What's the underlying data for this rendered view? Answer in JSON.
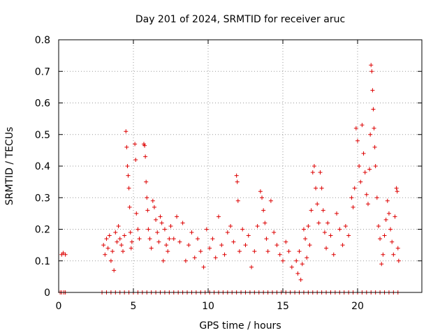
{
  "chart_data": {
    "type": "scatter",
    "title": "Day 201 of 2024, SRMTID for receiver aruc",
    "xlabel": "GPS time / hours",
    "ylabel": "SRMTID / TECUs",
    "xlim": [
      0,
      24.3
    ],
    "ylim": [
      0,
      0.8
    ],
    "grid": true,
    "marker": "+",
    "marker_color": "#dd0000",
    "x_ticks": [
      0,
      5,
      10,
      15,
      20
    ],
    "x_tick_labels": [
      "0",
      "5",
      "10",
      "15",
      "20"
    ],
    "y_ticks": [
      0,
      0.1,
      0.2,
      0.3,
      0.4,
      0.5,
      0.6,
      0.7,
      0.8
    ],
    "y_tick_labels": [
      "0",
      "0.1",
      "0.2",
      "0.3",
      "0.4",
      "0.5",
      "0.6",
      "0.7",
      "0.8"
    ],
    "series": [
      {
        "name": "SRMTID",
        "points": [
          [
            0.2,
            0.12
          ],
          [
            0.3,
            0.125
          ],
          [
            0.45,
            0.12
          ],
          [
            0.1,
            0
          ],
          [
            0.2,
            0
          ],
          [
            0.35,
            0
          ],
          [
            0.45,
            0
          ],
          [
            3.0,
            0.15
          ],
          [
            3.1,
            0.12
          ],
          [
            3.2,
            0.17
          ],
          [
            3.3,
            0.14
          ],
          [
            3.4,
            0.18
          ],
          [
            3.5,
            0.1
          ],
          [
            3.6,
            0.13
          ],
          [
            3.7,
            0.07
          ],
          [
            3.8,
            0.19
          ],
          [
            3.9,
            0.16
          ],
          [
            4.0,
            0.21
          ],
          [
            4.1,
            0.17
          ],
          [
            4.2,
            0.15
          ],
          [
            4.3,
            0.13
          ],
          [
            4.4,
            0.18
          ],
          [
            4.5,
            0.51
          ],
          [
            4.55,
            0.46
          ],
          [
            4.6,
            0.4
          ],
          [
            4.65,
            0.37
          ],
          [
            4.7,
            0.33
          ],
          [
            4.75,
            0.27
          ],
          [
            4.8,
            0.19
          ],
          [
            4.85,
            0.14
          ],
          [
            4.9,
            0.16
          ],
          [
            5.1,
            0.47
          ],
          [
            5.15,
            0.42
          ],
          [
            5.2,
            0.25
          ],
          [
            5.3,
            0.2
          ],
          [
            5.4,
            0.17
          ],
          [
            5.7,
            0.47
          ],
          [
            5.75,
            0.465
          ],
          [
            5.8,
            0.43
          ],
          [
            5.85,
            0.35
          ],
          [
            5.9,
            0.3
          ],
          [
            5.95,
            0.26
          ],
          [
            6.0,
            0.2
          ],
          [
            6.1,
            0.17
          ],
          [
            6.2,
            0.14
          ],
          [
            6.3,
            0.29
          ],
          [
            6.4,
            0.27
          ],
          [
            6.5,
            0.23
          ],
          [
            6.6,
            0.19
          ],
          [
            6.7,
            0.16
          ],
          [
            6.8,
            0.24
          ],
          [
            6.9,
            0.22
          ],
          [
            7.0,
            0.1
          ],
          [
            7.1,
            0.2
          ],
          [
            7.2,
            0.15
          ],
          [
            7.3,
            0.13
          ],
          [
            7.4,
            0.17
          ],
          [
            7.5,
            0.21
          ],
          [
            7.7,
            0.17
          ],
          [
            7.9,
            0.24
          ],
          [
            8.1,
            0.16
          ],
          [
            8.3,
            0.22
          ],
          [
            8.5,
            0.1
          ],
          [
            8.7,
            0.15
          ],
          [
            8.9,
            0.19
          ],
          [
            9.1,
            0.11
          ],
          [
            9.3,
            0.17
          ],
          [
            9.5,
            0.13
          ],
          [
            9.7,
            0.08
          ],
          [
            9.9,
            0.2
          ],
          [
            10.1,
            0.14
          ],
          [
            10.3,
            0.17
          ],
          [
            10.5,
            0.11
          ],
          [
            10.7,
            0.24
          ],
          [
            10.9,
            0.15
          ],
          [
            11.1,
            0.12
          ],
          [
            11.3,
            0.19
          ],
          [
            11.5,
            0.21
          ],
          [
            11.7,
            0.16
          ],
          [
            11.9,
            0.37
          ],
          [
            11.95,
            0.35
          ],
          [
            12.0,
            0.29
          ],
          [
            12.1,
            0.13
          ],
          [
            12.3,
            0.2
          ],
          [
            12.5,
            0.15
          ],
          [
            12.7,
            0.18
          ],
          [
            12.9,
            0.08
          ],
          [
            13.1,
            0.13
          ],
          [
            13.3,
            0.21
          ],
          [
            13.5,
            0.32
          ],
          [
            13.6,
            0.3
          ],
          [
            13.7,
            0.26
          ],
          [
            13.8,
            0.22
          ],
          [
            13.9,
            0.17
          ],
          [
            14.0,
            0.13
          ],
          [
            14.2,
            0.29
          ],
          [
            14.4,
            0.19
          ],
          [
            14.6,
            0.15
          ],
          [
            14.8,
            0.12
          ],
          [
            15.0,
            0.1
          ],
          [
            15.2,
            0.16
          ],
          [
            15.4,
            0.13
          ],
          [
            15.6,
            0.08
          ],
          [
            15.9,
            0.1
          ],
          [
            16.0,
            0.06
          ],
          [
            16.1,
            0.13
          ],
          [
            16.2,
            0.04
          ],
          [
            16.3,
            0.09
          ],
          [
            16.4,
            0.2
          ],
          [
            16.5,
            0.17
          ],
          [
            16.6,
            0.11
          ],
          [
            16.7,
            0.21
          ],
          [
            16.8,
            0.15
          ],
          [
            16.9,
            0.26
          ],
          [
            17.0,
            0.38
          ],
          [
            17.1,
            0.4
          ],
          [
            17.2,
            0.33
          ],
          [
            17.3,
            0.28
          ],
          [
            17.4,
            0.22
          ],
          [
            17.5,
            0.38
          ],
          [
            17.6,
            0.33
          ],
          [
            17.7,
            0.26
          ],
          [
            17.8,
            0.19
          ],
          [
            17.9,
            0.14
          ],
          [
            18.0,
            0.22
          ],
          [
            18.2,
            0.18
          ],
          [
            18.4,
            0.12
          ],
          [
            18.6,
            0.25
          ],
          [
            18.8,
            0.2
          ],
          [
            19.0,
            0.15
          ],
          [
            19.2,
            0.21
          ],
          [
            19.4,
            0.18
          ],
          [
            19.6,
            0.3
          ],
          [
            19.7,
            0.27
          ],
          [
            19.8,
            0.33
          ],
          [
            19.9,
            0.52
          ],
          [
            20.0,
            0.48
          ],
          [
            20.1,
            0.4
          ],
          [
            20.2,
            0.35
          ],
          [
            20.3,
            0.53
          ],
          [
            20.4,
            0.44
          ],
          [
            20.5,
            0.38
          ],
          [
            20.6,
            0.31
          ],
          [
            20.7,
            0.28
          ],
          [
            20.8,
            0.39
          ],
          [
            20.85,
            0.5
          ],
          [
            20.9,
            0.72
          ],
          [
            20.95,
            0.7
          ],
          [
            21.0,
            0.64
          ],
          [
            21.05,
            0.58
          ],
          [
            21.1,
            0.52
          ],
          [
            21.15,
            0.46
          ],
          [
            21.2,
            0.4
          ],
          [
            21.3,
            0.3
          ],
          [
            21.4,
            0.21
          ],
          [
            21.5,
            0.17
          ],
          [
            21.6,
            0.09
          ],
          [
            21.7,
            0.12
          ],
          [
            21.8,
            0.18
          ],
          [
            21.9,
            0.23
          ],
          [
            22.0,
            0.29
          ],
          [
            22.1,
            0.25
          ],
          [
            22.2,
            0.2
          ],
          [
            22.3,
            0.16
          ],
          [
            22.4,
            0.12
          ],
          [
            22.5,
            0.24
          ],
          [
            22.6,
            0.33
          ],
          [
            22.65,
            0.32
          ],
          [
            22.7,
            0.14
          ],
          [
            22.75,
            0.1
          ],
          [
            2.9,
            0
          ],
          [
            3.2,
            0
          ],
          [
            3.5,
            0
          ],
          [
            3.8,
            0
          ],
          [
            4.1,
            0
          ],
          [
            4.4,
            0
          ],
          [
            4.7,
            0
          ],
          [
            5.0,
            0
          ],
          [
            5.3,
            0
          ],
          [
            5.6,
            0
          ],
          [
            5.9,
            0
          ],
          [
            6.2,
            0
          ],
          [
            6.5,
            0
          ],
          [
            6.8,
            0
          ],
          [
            7.1,
            0
          ],
          [
            7.4,
            0
          ],
          [
            7.7,
            0
          ],
          [
            8.0,
            0
          ],
          [
            8.3,
            0
          ],
          [
            8.6,
            0
          ],
          [
            8.9,
            0
          ],
          [
            9.2,
            0
          ],
          [
            9.5,
            0
          ],
          [
            9.8,
            0
          ],
          [
            10.1,
            0
          ],
          [
            10.4,
            0
          ],
          [
            10.7,
            0
          ],
          [
            11.0,
            0
          ],
          [
            11.3,
            0
          ],
          [
            11.6,
            0
          ],
          [
            11.9,
            0
          ],
          [
            12.2,
            0
          ],
          [
            12.5,
            0
          ],
          [
            12.8,
            0
          ],
          [
            13.1,
            0
          ],
          [
            13.4,
            0
          ],
          [
            13.7,
            0
          ],
          [
            14.0,
            0
          ],
          [
            14.3,
            0
          ],
          [
            14.6,
            0
          ],
          [
            14.9,
            0
          ],
          [
            15.2,
            0
          ],
          [
            15.5,
            0
          ],
          [
            15.8,
            0
          ],
          [
            16.1,
            0
          ],
          [
            16.4,
            0
          ],
          [
            16.7,
            0
          ],
          [
            17.0,
            0
          ],
          [
            17.3,
            0
          ],
          [
            17.6,
            0
          ],
          [
            17.9,
            0
          ],
          [
            18.2,
            0
          ],
          [
            18.5,
            0
          ],
          [
            18.8,
            0
          ],
          [
            19.1,
            0
          ],
          [
            19.4,
            0
          ],
          [
            19.7,
            0
          ],
          [
            20.0,
            0
          ],
          [
            20.3,
            0
          ],
          [
            20.6,
            0
          ],
          [
            20.9,
            0
          ],
          [
            21.2,
            0
          ],
          [
            21.5,
            0
          ],
          [
            21.8,
            0
          ],
          [
            22.1,
            0
          ],
          [
            22.4,
            0
          ],
          [
            22.7,
            0
          ]
        ]
      }
    ]
  }
}
